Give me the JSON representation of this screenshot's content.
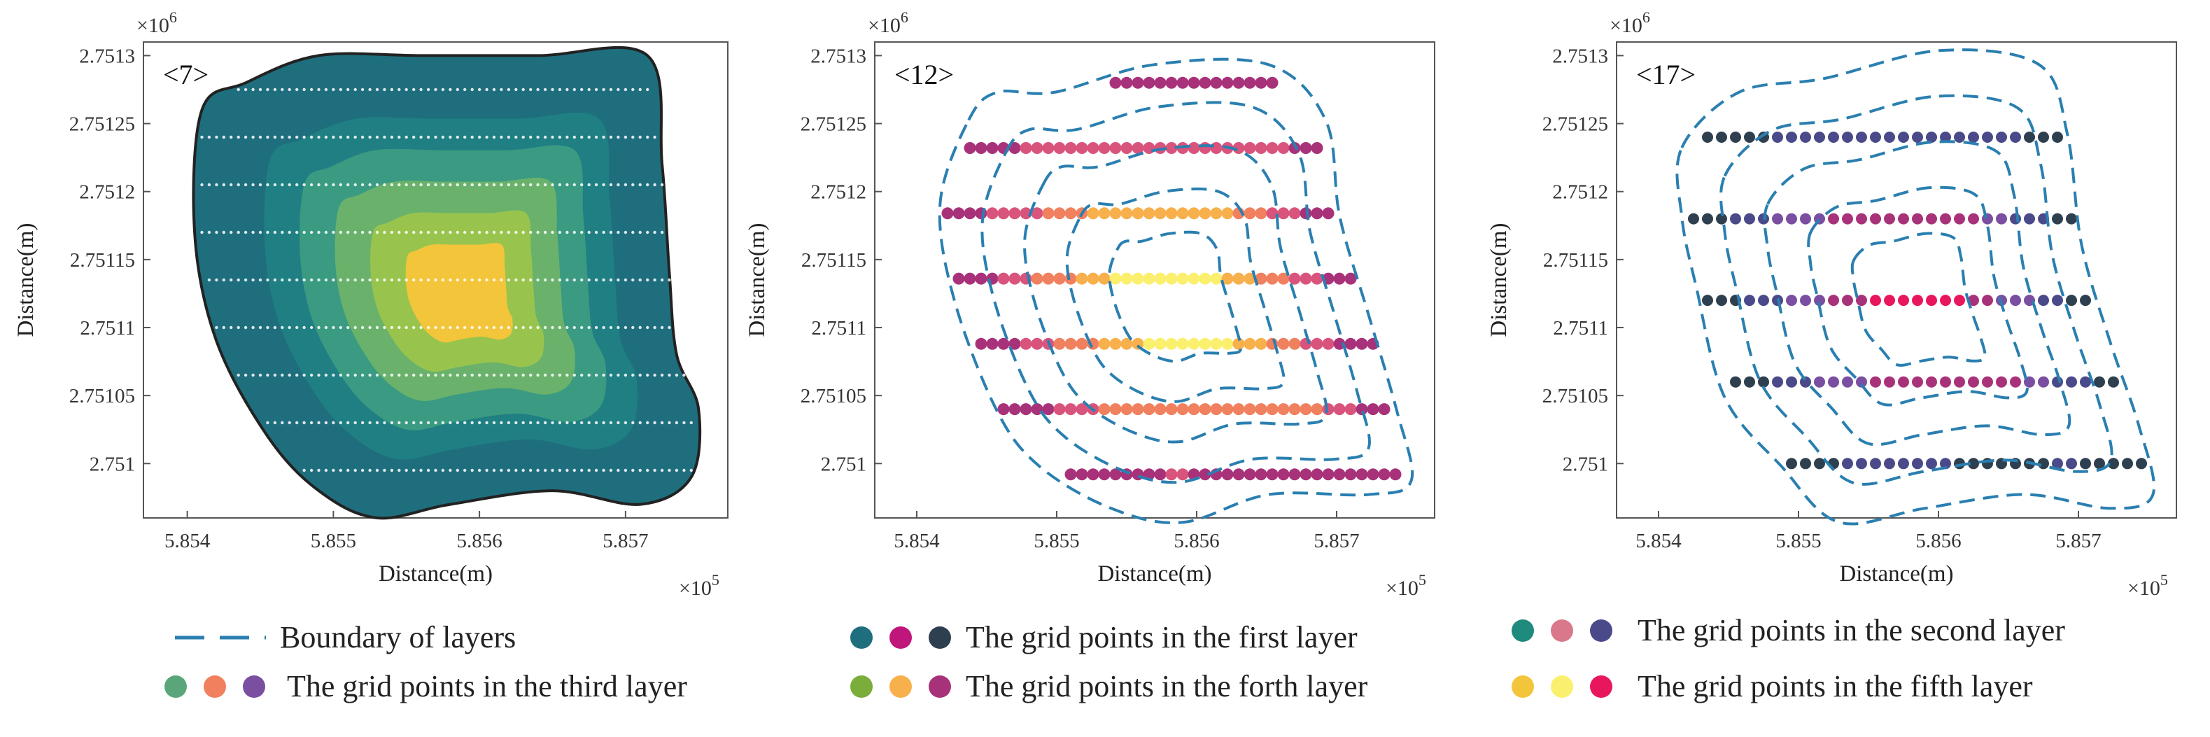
{
  "chart_data": [
    {
      "type": "scatter",
      "panel_label": "<7>",
      "xlabel": "Distance(m)",
      "ylabel": "Distance(m)",
      "x_multiplier": "×10^5",
      "y_multiplier": "×10^6",
      "x_ticks": [
        "5.854",
        "5.855",
        "5.856",
        "5.857"
      ],
      "y_ticks": [
        "2.7513",
        "2.75125",
        "2.7512",
        "2.75115",
        "2.7511",
        "2.75105",
        "2.751"
      ],
      "xlim": [
        5.8537,
        5.8577
      ],
      "ylim": [
        2.75096,
        2.75131
      ],
      "layers": 7,
      "grid_spacing": 5e-05,
      "boundary": [
        [
          5.8541,
          2.75126
        ],
        [
          5.8544,
          2.75128
        ],
        [
          5.8549,
          2.7513
        ],
        [
          5.8556,
          2.7513
        ],
        [
          5.8564,
          2.7513
        ],
        [
          5.85715,
          2.7513
        ],
        [
          5.85725,
          2.75122
        ],
        [
          5.8573,
          2.75114
        ],
        [
          5.85735,
          2.75108
        ],
        [
          5.8575,
          2.75104
        ],
        [
          5.85745,
          2.75099
        ],
        [
          5.8571,
          2.75097
        ],
        [
          5.8565,
          2.75098
        ],
        [
          5.8558,
          2.75097
        ],
        [
          5.8553,
          2.75096
        ],
        [
          5.8549,
          2.75098
        ],
        [
          5.85455,
          2.75102
        ],
        [
          5.8542,
          2.75109
        ],
        [
          5.85405,
          2.75117
        ]
      ],
      "layer_colors": [
        "#1f6e7e",
        "#1f6e7e",
        "#1f7f82",
        "#3a9a82",
        "#6ab26c",
        "#98c44e",
        "#f3c53a"
      ]
    },
    {
      "type": "scatter",
      "panel_label": "<12>",
      "xlabel": "Distance(m)",
      "ylabel": "Distance(m)",
      "x_multiplier": "×10^5",
      "y_multiplier": "×10^6",
      "x_ticks": [
        "5.854",
        "5.855",
        "5.856",
        "5.857"
      ],
      "y_ticks": [
        "2.7513",
        "2.75125",
        "2.7512",
        "2.75115",
        "2.7511",
        "2.75105",
        "2.751"
      ],
      "xlim": [
        5.8537,
        5.8577
      ],
      "ylim": [
        2.75096,
        2.75131
      ],
      "layers": 5,
      "grid_spacing": 8e-05,
      "boundary": [
        [
          5.8544,
          2.75125
        ],
        [
          5.8546,
          2.75127
        ],
        [
          5.855,
          2.75127
        ],
        [
          5.8557,
          2.75129
        ],
        [
          5.8565,
          2.75129
        ],
        [
          5.8569,
          2.75125
        ],
        [
          5.857,
          2.75118
        ],
        [
          5.8572,
          2.75111
        ],
        [
          5.8574,
          2.75104
        ],
        [
          5.8575,
          2.75099
        ],
        [
          5.8572,
          2.75098
        ],
        [
          5.8565,
          2.75098
        ],
        [
          5.8559,
          2.75096
        ],
        [
          5.8554,
          2.75097
        ],
        [
          5.8549,
          2.751
        ],
        [
          5.8546,
          2.75104
        ],
        [
          5.8543,
          2.75112
        ],
        [
          5.8542,
          2.75119
        ]
      ],
      "layer_colors": [
        "#a8327a",
        "#d9547c",
        "#f0805e",
        "#f7b04c",
        "#fbf06e"
      ]
    },
    {
      "type": "scatter",
      "panel_label": "<17>",
      "xlabel": "Distance(m)",
      "ylabel": "Distance(m)",
      "x_multiplier": "×10^5",
      "y_multiplier": "×10^6",
      "x_ticks": [
        "5.854",
        "5.855",
        "5.856",
        "5.857"
      ],
      "y_ticks": [
        "2.7513",
        "2.75125",
        "2.7512",
        "2.75115",
        "2.7511",
        "2.75105",
        "2.751"
      ],
      "xlim": [
        5.8537,
        5.8577
      ],
      "ylim": [
        2.75096,
        2.75131
      ],
      "layers": 5,
      "grid_spacing": 0.0001,
      "boundary": [
        [
          5.8542,
          2.75123
        ],
        [
          5.8546,
          2.75127
        ],
        [
          5.8552,
          2.75128
        ],
        [
          5.856,
          2.7513
        ],
        [
          5.8567,
          2.75129
        ],
        [
          5.8569,
          2.75124
        ],
        [
          5.857,
          2.75116
        ],
        [
          5.8572,
          2.75109
        ],
        [
          5.8574,
          2.75103
        ],
        [
          5.8575,
          2.75098
        ],
        [
          5.8572,
          2.75097
        ],
        [
          5.8566,
          2.75098
        ],
        [
          5.8559,
          2.75097
        ],
        [
          5.8553,
          2.75096
        ],
        [
          5.8549,
          2.751
        ],
        [
          5.8545,
          2.75105
        ],
        [
          5.8543,
          2.75113
        ],
        [
          5.8542,
          2.75118
        ]
      ],
      "layer_colors": [
        "#2e3f4f",
        "#4a4a8a",
        "#7a4ea0",
        "#a8327a",
        "#e8175d"
      ]
    }
  ],
  "legend": [
    {
      "label": "Boundary of layers",
      "kind": "dash",
      "colors": [
        "#2a7fb0"
      ]
    },
    {
      "label": "The grid points in the first layer",
      "kind": "dots",
      "colors": [
        "#1f6e7e",
        "#c0157a",
        "#2e3f4f"
      ]
    },
    {
      "label": "The grid points in the second layer",
      "kind": "dots",
      "colors": [
        "#1f8a7e",
        "#d9788a",
        "#4a4a8a"
      ]
    },
    {
      "label": "The grid points in the third layer",
      "kind": "dots",
      "colors": [
        "#5aa67a",
        "#f0805e",
        "#7a4ea0"
      ]
    },
    {
      "label": "The grid points in the forth layer",
      "kind": "dots",
      "colors": [
        "#7aad3a",
        "#f7b04c",
        "#a8327a"
      ]
    },
    {
      "label": "The grid points in the fifth layer",
      "kind": "dots",
      "colors": [
        "#f3c53a",
        "#fbf06e",
        "#e8175d"
      ]
    }
  ],
  "style": {
    "axis_color": "#555555",
    "boundary_color_panel1": "#222222",
    "boundary_color_dashed": "#2a7fb0"
  }
}
